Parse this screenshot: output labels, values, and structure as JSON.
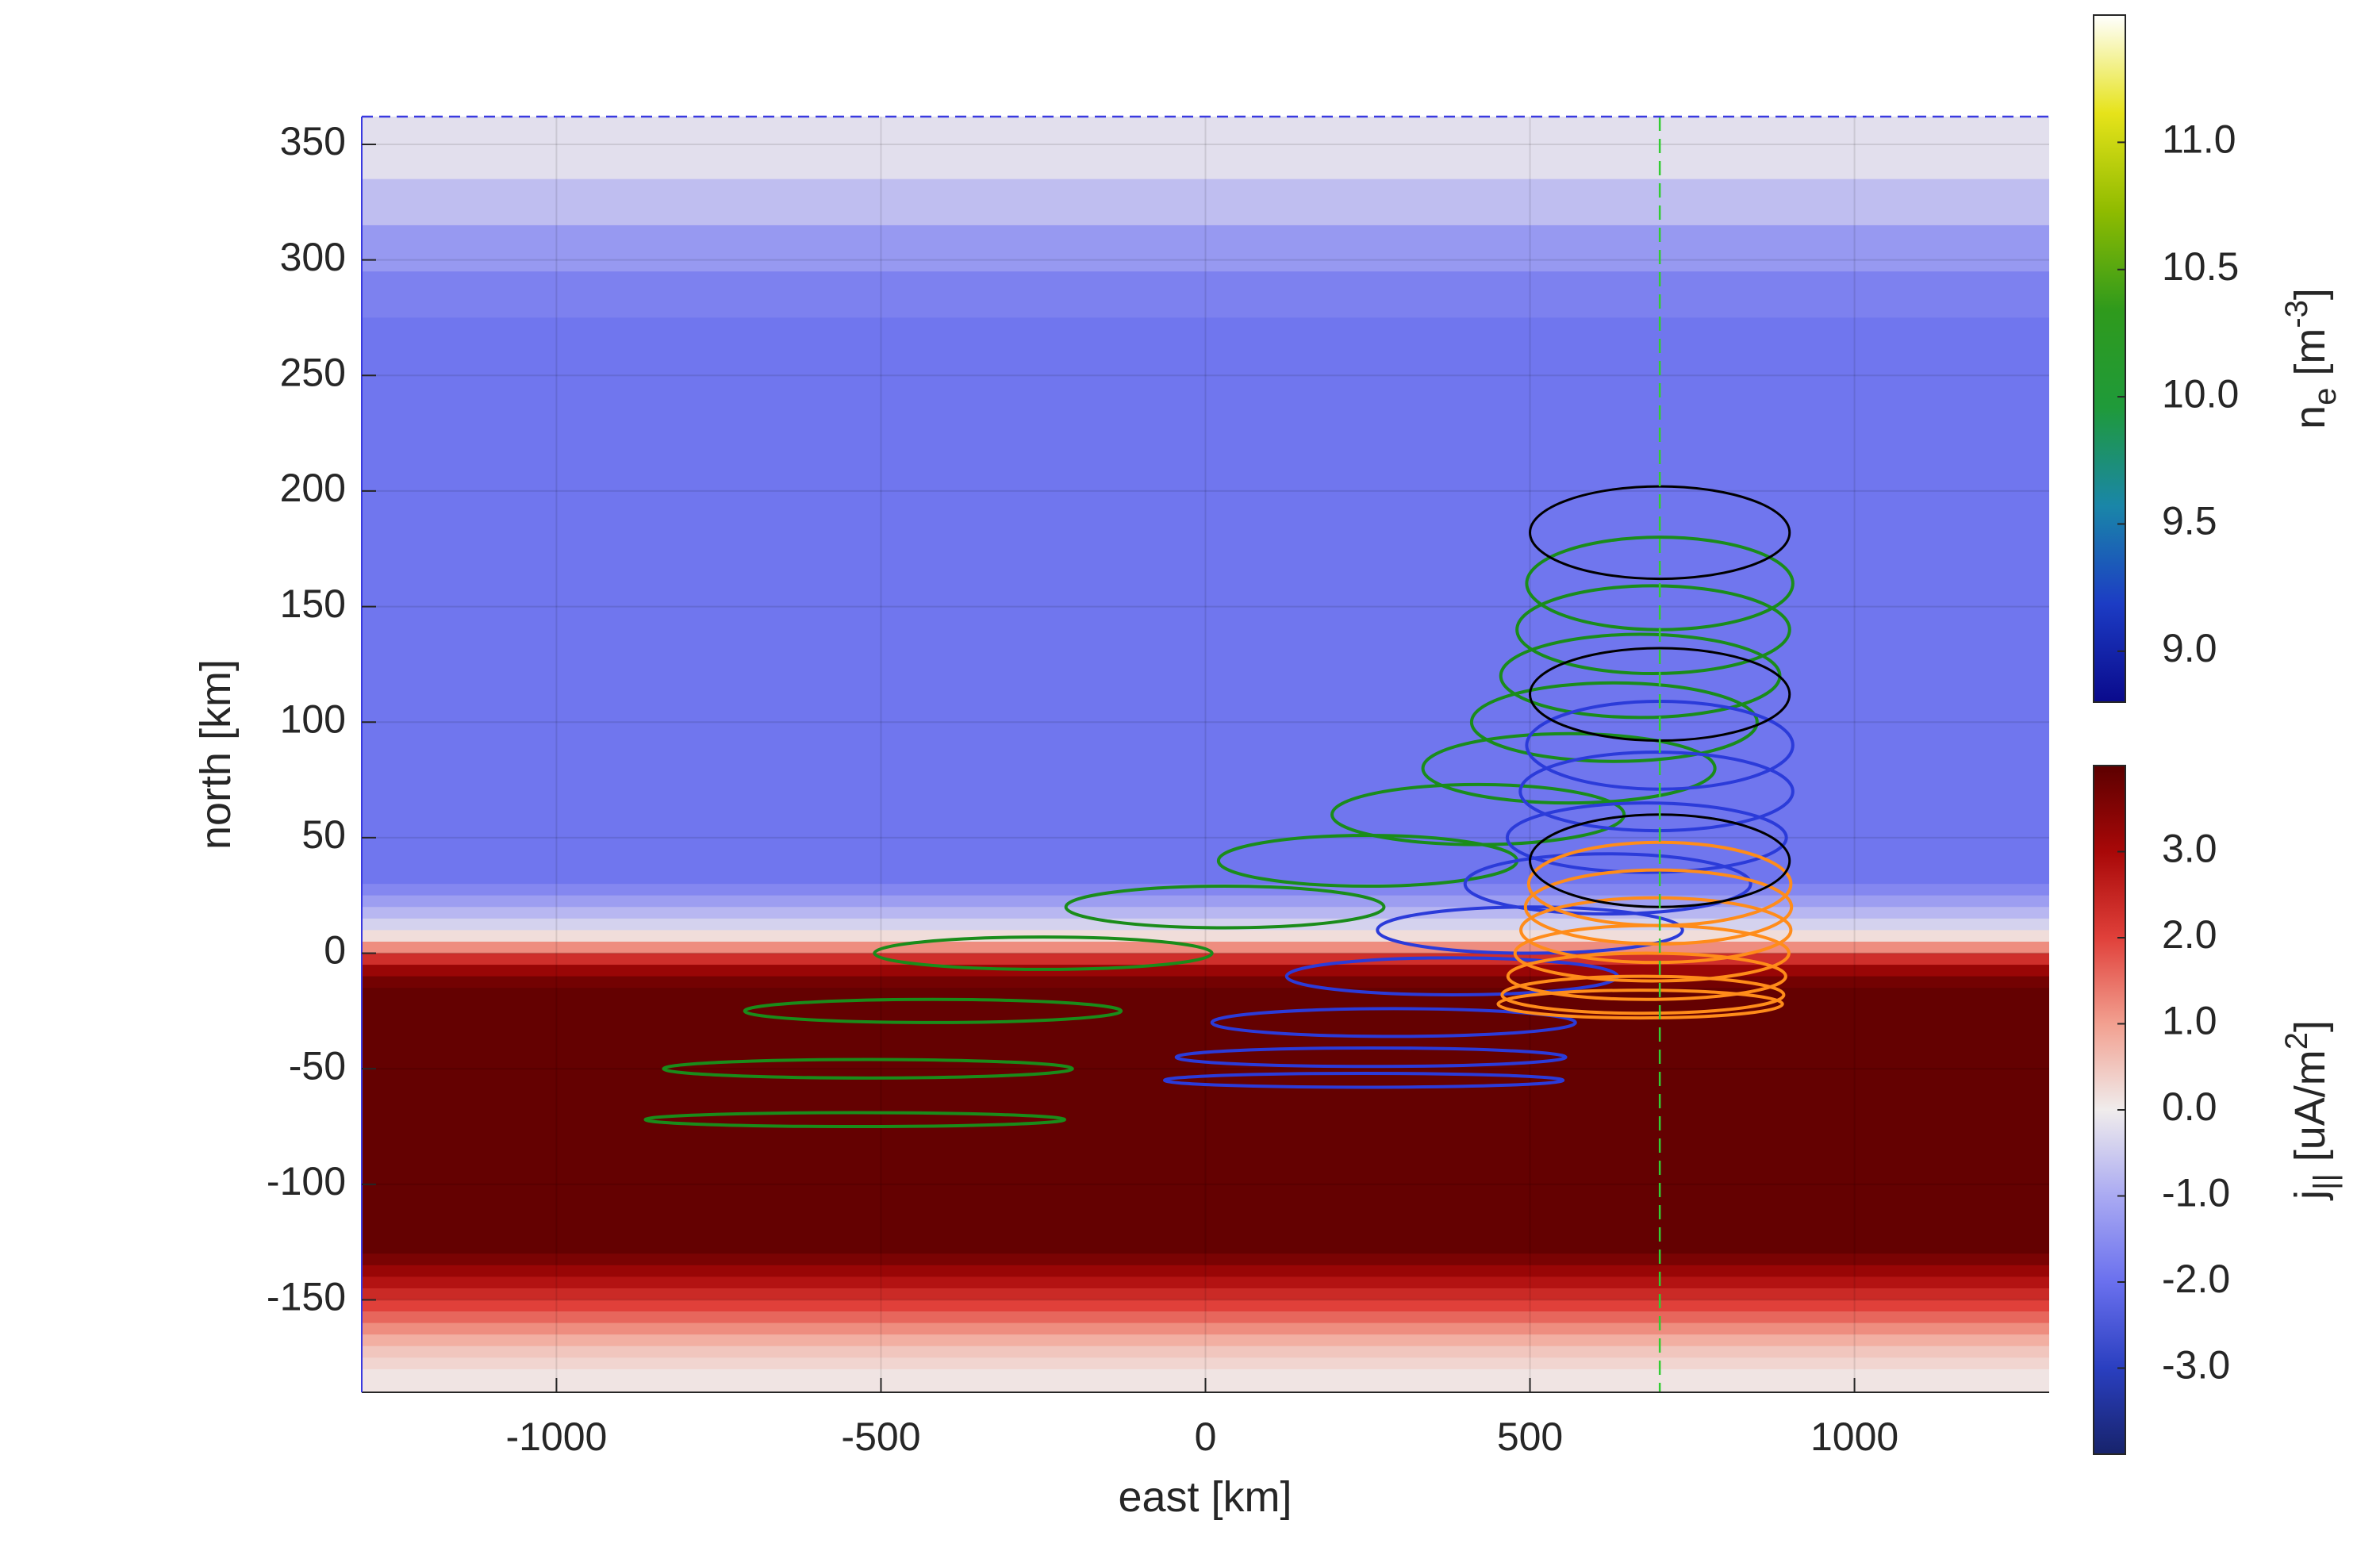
{
  "chart_data": {
    "type": "fluxtube",
    "xlabel": "east [km]",
    "ylabel": "north [km]",
    "xlim": [
      -1300,
      1300
    ],
    "ylim": [
      -190,
      362
    ],
    "xticks": [
      -1000,
      -500,
      0,
      500,
      1000
    ],
    "yticks": [
      -150,
      -100,
      -50,
      0,
      50,
      100,
      150,
      200,
      250,
      300,
      350
    ],
    "grid": true,
    "reference_line": {
      "east": 700,
      "color": "#33cc33"
    },
    "background": {
      "north": [
        362,
        335,
        315,
        295,
        275,
        30,
        25,
        20,
        15,
        10,
        5,
        0,
        -5,
        -10,
        -15,
        -130,
        -135,
        -140,
        -145,
        -150,
        -155,
        -160,
        -165,
        -170,
        -175,
        -180,
        -190
      ],
      "j": [
        -0.2,
        -0.7,
        -1.3,
        -1.7,
        -1.9,
        -1.6,
        -1.2,
        -0.8,
        -0.4,
        0.2,
        1.2,
        2.3,
        3.2,
        3.7,
        3.9,
        3.6,
        3.2,
        2.8,
        2.4,
        2.0,
        1.6,
        1.2,
        0.8,
        0.5,
        0.3,
        0.1
      ]
    },
    "series": [
      {
        "color": "#1a8c1a",
        "top_color": "#000000",
        "north": [
          182,
          160,
          140,
          120,
          100,
          80,
          60,
          40,
          20,
          0,
          -25,
          -50,
          -72
        ],
        "east": [
          700,
          700,
          690,
          670,
          630,
          560,
          420,
          250,
          30,
          -250,
          -420,
          -520,
          -540
        ],
        "radius_east": [
          200,
          205,
          210,
          215,
          220,
          225,
          225,
          230,
          245,
          260,
          290,
          315,
          323
        ],
        "radius_north": [
          20,
          20,
          19,
          18,
          17,
          15,
          13,
          11,
          9,
          7,
          5,
          4,
          3
        ]
      },
      {
        "color": "#2b3bd9",
        "top_color": "#000000",
        "north": [
          112,
          90,
          70,
          50,
          30,
          10,
          -10,
          -30,
          -45,
          -55
        ],
        "east": [
          700,
          700,
          695,
          680,
          620,
          500,
          380,
          290,
          255,
          244
        ],
        "radius_east": [
          200,
          205,
          210,
          215,
          220,
          235,
          255,
          280,
          300,
          307
        ],
        "radius_north": [
          20,
          19,
          17,
          15,
          13,
          10,
          8,
          6,
          4,
          3
        ]
      },
      {
        "color": "#ff8c1a",
        "top_color": "#000000",
        "north": [
          40,
          30,
          20,
          10,
          0,
          -10,
          -18,
          -22
        ],
        "east": [
          700,
          700,
          698,
          694,
          688,
          680,
          674,
          670
        ],
        "radius_east": [
          200,
          202,
          205,
          208,
          211,
          214,
          217,
          219
        ],
        "radius_north": [
          20,
          18,
          16,
          14,
          12,
          10,
          8,
          6
        ]
      }
    ],
    "colorbars": [
      {
        "label": [
          "n",
          "e",
          " [m",
          "-3",
          "]"
        ],
        "clim": [
          8.8,
          11.5
        ],
        "ticks": [
          {
            "value": 9,
            "label": "9.0"
          },
          9.5,
          {
            "value": 10,
            "label": "10.0"
          },
          10.5,
          {
            "value": 11,
            "label": "11.0"
          }
        ],
        "colormap": [
          "#0a0a8c",
          "#1c3cc4",
          "#1a86a8",
          "#1f9a3a",
          "#2f9a1c",
          "#8fbb00",
          "#e6e31a",
          "#ffffff"
        ]
      },
      {
        "label": [
          "j",
          "||",
          " [uA/m",
          "2",
          "]"
        ],
        "clim": [
          -4,
          4
        ],
        "ticks": [
          {
            "value": -3,
            "label": "-3.0"
          },
          {
            "value": -2,
            "label": "-2.0"
          },
          {
            "value": -1,
            "label": "-1.0"
          },
          {
            "value": 0,
            "label": "0.0"
          },
          {
            "value": 1,
            "label": "1.0"
          },
          {
            "value": 2,
            "label": "2.0"
          },
          {
            "value": 3,
            "label": "3.0"
          }
        ],
        "colormap": [
          "#17236b",
          "#2a3fc0",
          "#6a70ee",
          "#aaaaf2",
          "#f0ecec",
          "#f2a090",
          "#e0403a",
          "#a80808",
          "#5c0000"
        ]
      }
    ]
  }
}
